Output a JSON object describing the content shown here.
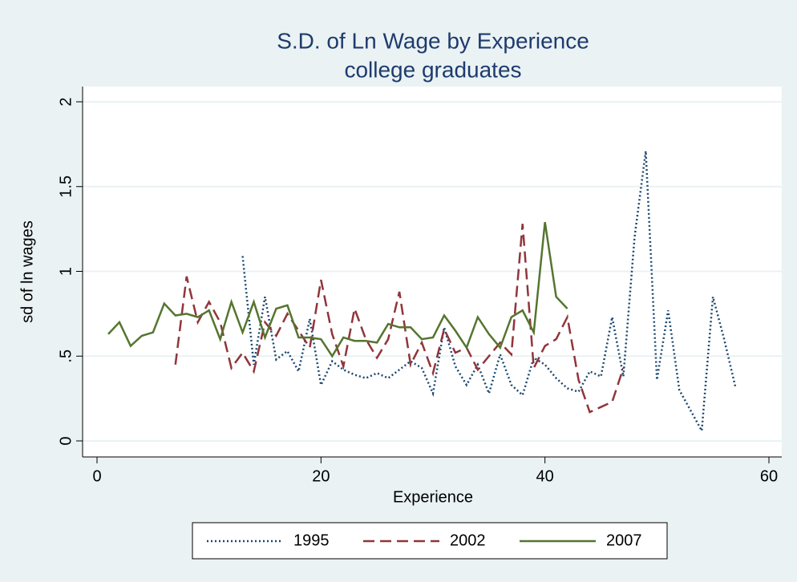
{
  "chart_data": {
    "type": "line",
    "title": "S.D. of Ln Wage by Experience",
    "subtitle": "college graduates",
    "x_label": "Experience",
    "y_label": "sd of ln wages",
    "xlim": [
      0,
      60
    ],
    "xticks": [
      0,
      20,
      40,
      60
    ],
    "ylim": [
      0,
      2
    ],
    "yticks": [
      0,
      {
        "value": 0.5,
        "label": ".5"
      },
      1,
      1.5,
      2
    ],
    "grid": true,
    "legend": "bottom",
    "series": [
      {
        "name": "1995",
        "color": "#1a476f",
        "dash": "dotted",
        "x": [
          13,
          14,
          15,
          16,
          17,
          18,
          19,
          20,
          21,
          22,
          23,
          24,
          25,
          26,
          27,
          28,
          29,
          30,
          31,
          32,
          33,
          34,
          35,
          36,
          37,
          38,
          39,
          40,
          41,
          42,
          43,
          44,
          45,
          46,
          47,
          48,
          49,
          50,
          51,
          52,
          53,
          54,
          55,
          56,
          57
        ],
        "values": [
          1.09,
          0.45,
          0.85,
          0.48,
          0.53,
          0.41,
          0.72,
          0.33,
          0.47,
          0.42,
          0.39,
          0.37,
          0.4,
          0.37,
          0.42,
          0.47,
          0.43,
          0.28,
          0.67,
          0.44,
          0.33,
          0.45,
          0.28,
          0.51,
          0.33,
          0.27,
          0.49,
          0.45,
          0.37,
          0.31,
          0.29,
          0.41,
          0.38,
          0.73,
          0.38,
          1.2,
          1.71,
          0.36,
          0.77,
          0.3,
          0.18,
          0.06,
          0.85,
          0.6,
          0.32
        ]
      },
      {
        "name": "2002",
        "color": "#90353b",
        "dash": "dashed",
        "x": [
          7,
          8,
          9,
          10,
          11,
          12,
          13,
          14,
          15,
          16,
          17,
          18,
          19,
          20,
          21,
          22,
          23,
          24,
          25,
          26,
          27,
          28,
          29,
          30,
          31,
          32,
          33,
          34,
          35,
          36,
          37,
          38,
          39,
          40,
          41,
          42,
          43,
          44,
          45,
          46,
          47
        ],
        "values": [
          0.45,
          0.97,
          0.7,
          0.82,
          0.7,
          0.43,
          0.52,
          0.41,
          0.7,
          0.62,
          0.75,
          0.65,
          0.55,
          0.95,
          0.63,
          0.44,
          0.78,
          0.6,
          0.49,
          0.6,
          0.88,
          0.45,
          0.58,
          0.4,
          0.66,
          0.52,
          0.55,
          0.42,
          0.5,
          0.58,
          0.51,
          1.28,
          0.43,
          0.56,
          0.6,
          0.73,
          0.36,
          0.17,
          0.2,
          0.23,
          0.43
        ]
      },
      {
        "name": "2007",
        "color": "#55752f",
        "dash": "solid",
        "x": [
          1,
          2,
          3,
          4,
          5,
          6,
          7,
          8,
          9,
          10,
          11,
          12,
          13,
          14,
          15,
          16,
          17,
          18,
          19,
          20,
          21,
          22,
          23,
          24,
          25,
          26,
          27,
          28,
          29,
          30,
          31,
          32,
          33,
          34,
          35,
          36,
          37,
          38,
          39,
          40,
          41,
          42
        ],
        "values": [
          0.63,
          0.7,
          0.56,
          0.62,
          0.64,
          0.81,
          0.74,
          0.75,
          0.73,
          0.77,
          0.6,
          0.82,
          0.64,
          0.82,
          0.61,
          0.78,
          0.8,
          0.61,
          0.61,
          0.6,
          0.5,
          0.61,
          0.59,
          0.59,
          0.58,
          0.69,
          0.67,
          0.67,
          0.6,
          0.61,
          0.74,
          0.65,
          0.55,
          0.73,
          0.63,
          0.55,
          0.73,
          0.77,
          0.64,
          1.29,
          0.85,
          0.78
        ]
      }
    ]
  }
}
